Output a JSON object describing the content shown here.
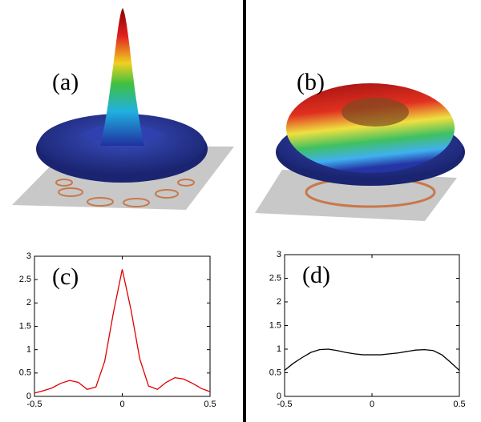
{
  "panels": [
    "(a)",
    "(b)"
  ],
  "chart_data": [
    {
      "type": "line",
      "annotation": "(c)",
      "x": [
        -0.5,
        -0.45,
        -0.4,
        -0.35,
        -0.3,
        -0.25,
        -0.2,
        -0.15,
        -0.1,
        -0.05,
        0,
        0.05,
        0.1,
        0.15,
        0.2,
        0.25,
        0.3,
        0.35,
        0.4,
        0.45,
        0.5
      ],
      "series": [
        {
          "color": "#e00000",
          "values": [
            0.07,
            0.12,
            0.18,
            0.28,
            0.34,
            0.3,
            0.15,
            0.2,
            0.75,
            1.8,
            2.72,
            1.85,
            0.8,
            0.22,
            0.15,
            0.3,
            0.4,
            0.37,
            0.28,
            0.17,
            0.1
          ]
        }
      ],
      "xlim": [
        -0.5,
        0.5
      ],
      "ylim": [
        0,
        3
      ],
      "xticks": [
        -0.5,
        0,
        0.5
      ],
      "yticks": [
        0,
        0.5,
        1,
        1.5,
        2,
        2.5,
        3
      ]
    },
    {
      "type": "line",
      "annotation": "(d)",
      "x": [
        -0.5,
        -0.45,
        -0.4,
        -0.35,
        -0.3,
        -0.25,
        -0.2,
        -0.15,
        -0.1,
        -0.05,
        0,
        0.05,
        0.1,
        0.15,
        0.2,
        0.25,
        0.3,
        0.35,
        0.4,
        0.45,
        0.5
      ],
      "series": [
        {
          "color": "#000000",
          "values": [
            0.55,
            0.7,
            0.82,
            0.93,
            0.99,
            1.0,
            0.97,
            0.93,
            0.9,
            0.88,
            0.88,
            0.88,
            0.9,
            0.92,
            0.95,
            0.98,
            0.99,
            0.97,
            0.88,
            0.72,
            0.55
          ]
        }
      ],
      "xlim": [
        -0.5,
        0.5
      ],
      "ylim": [
        0,
        3
      ],
      "xticks": [
        -0.5,
        0,
        0.5
      ],
      "yticks": [
        0,
        0.5,
        1,
        1.5,
        2,
        2.5,
        3
      ]
    }
  ]
}
